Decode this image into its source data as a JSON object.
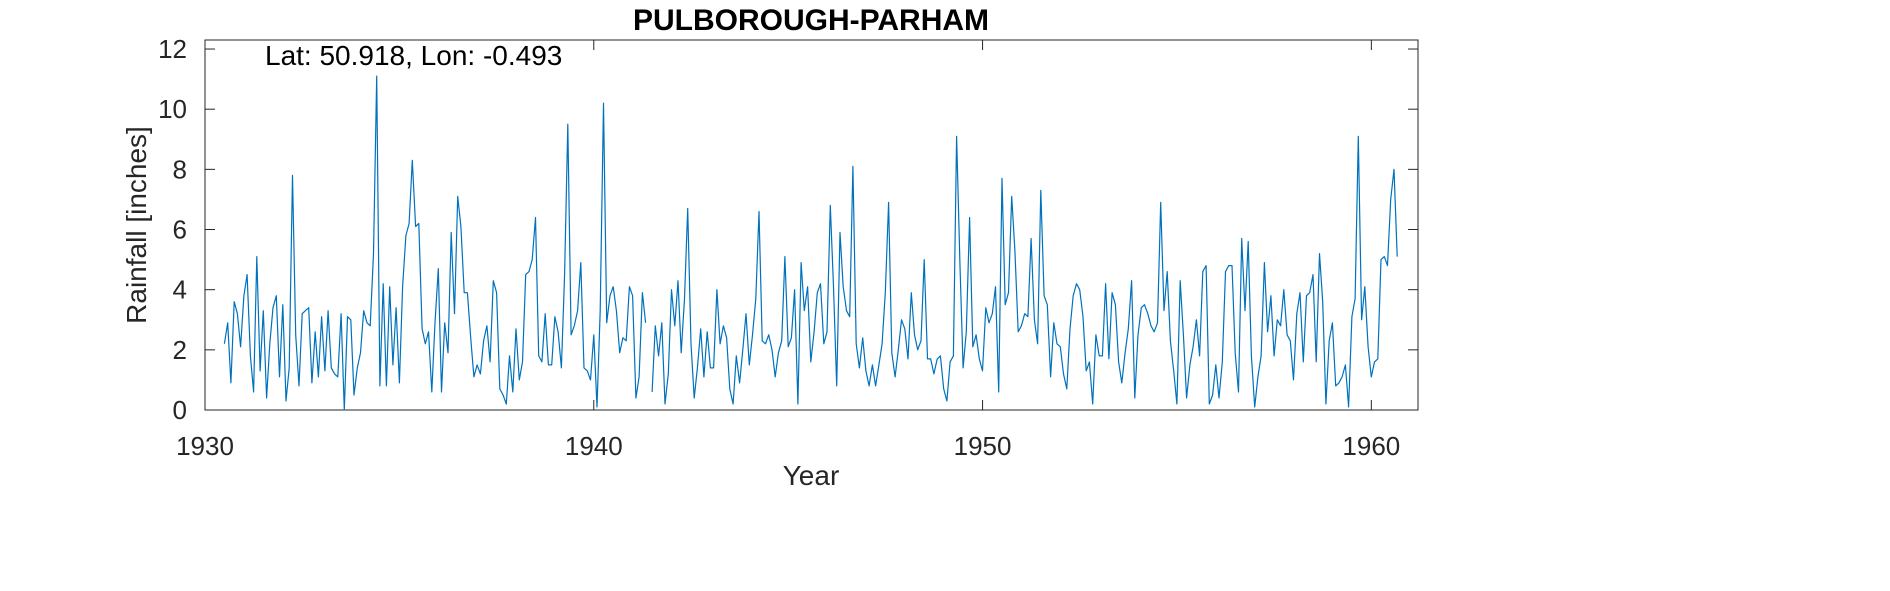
{
  "chart_data": {
    "type": "line",
    "title": "PULBOROUGH-PARHAM",
    "xlabel": "Year",
    "ylabel": "Rainfall [inches]",
    "annotation": "Lat: 50.918, Lon: -0.493",
    "xlim": [
      1930,
      1961.2
    ],
    "ylim": [
      0,
      12.3
    ],
    "xticks": [
      1930,
      1940,
      1950,
      1960
    ],
    "yticks": [
      0,
      2,
      4,
      6,
      8,
      10,
      12
    ],
    "grid": false,
    "legend": "none",
    "line_color": "#0072BD",
    "series": [
      {
        "x_start": 1930.5,
        "x_step": 0.08333,
        "values": [
          2.2,
          2.9,
          0.9,
          3.6,
          3.2,
          2.1,
          3.8,
          4.5,
          1.8,
          0.6,
          5.1,
          1.3,
          3.3,
          0.4,
          2.2,
          3.4,
          3.8,
          1.1,
          3.5,
          0.3,
          1.4,
          7.8,
          2.5,
          0.8,
          3.2,
          3.3,
          3.4,
          0.9,
          2.6,
          1.1,
          3.1,
          1.3,
          3.3,
          1.4,
          1.2,
          1.1,
          3.2,
          0.0,
          3.1,
          3.0,
          0.5,
          1.4,
          1.9,
          3.3,
          2.9,
          2.8,
          5.2,
          11.1,
          0.8,
          4.2,
          0.8,
          4.1,
          1.5,
          3.4,
          0.9,
          4.1,
          5.8,
          6.2,
          8.3,
          6.1,
          6.2,
          2.7,
          2.2,
          2.6,
          0.6,
          2.9,
          4.7,
          0.6,
          2.9,
          1.9,
          5.9,
          3.2,
          7.1,
          6.1,
          3.9,
          3.9,
          2.4,
          1.1,
          1.5,
          1.2,
          2.3,
          2.8,
          1.6,
          4.3,
          3.9,
          0.7,
          0.5,
          0.2,
          1.8,
          0.6,
          2.7,
          1.0,
          1.6,
          4.5,
          4.6,
          5.0,
          6.4,
          1.8,
          1.6,
          3.2,
          1.5,
          1.5,
          3.1,
          2.6,
          1.4,
          4.5,
          9.5,
          2.5,
          2.8,
          3.3,
          4.9,
          1.4,
          1.3,
          1.0,
          2.5,
          0.1,
          3.3,
          10.2,
          2.9,
          3.8,
          4.1,
          3.3,
          1.9,
          2.4,
          2.3,
          4.1,
          3.8,
          0.4,
          1.1,
          3.9,
          2.9,
          null,
          0.6,
          2.8,
          1.8,
          2.9,
          0.2,
          1.2,
          4.0,
          2.8,
          4.3,
          1.9,
          3.7,
          6.7,
          2.2,
          0.4,
          1.4,
          2.7,
          1.1,
          2.6,
          1.4,
          1.4,
          4.0,
          2.2,
          2.8,
          2.4,
          0.7,
          0.2,
          1.8,
          0.9,
          2.0,
          3.2,
          1.5,
          2.5,
          3.7,
          6.6,
          2.3,
          2.2,
          2.5,
          2.0,
          1.1,
          1.9,
          2.3,
          5.1,
          2.1,
          2.4,
          4.0,
          0.2,
          4.9,
          3.3,
          4.1,
          1.6,
          2.6,
          3.9,
          4.2,
          2.2,
          2.6,
          6.8,
          4.1,
          0.8,
          5.9,
          4.1,
          3.3,
          3.1,
          8.1,
          2.2,
          1.4,
          2.4,
          1.3,
          0.8,
          1.5,
          0.8,
          1.5,
          2.2,
          3.9,
          6.9,
          1.9,
          1.1,
          2.0,
          3.0,
          2.7,
          1.7,
          3.9,
          2.5,
          2.0,
          2.3,
          5.0,
          1.7,
          1.7,
          1.2,
          1.7,
          1.8,
          0.7,
          0.3,
          1.6,
          1.8,
          9.1,
          4.9,
          1.4,
          2.6,
          6.4,
          2.1,
          2.5,
          1.7,
          1.3,
          3.4,
          2.9,
          3.2,
          4.1,
          0.6,
          7.7,
          3.5,
          3.9,
          7.1,
          5.3,
          2.6,
          2.8,
          3.2,
          3.1,
          5.7,
          3.0,
          2.2,
          7.3,
          3.8,
          3.5,
          1.1,
          2.9,
          2.2,
          2.1,
          1.2,
          0.7,
          2.7,
          3.8,
          4.2,
          4.0,
          3.1,
          1.3,
          1.6,
          0.2,
          2.5,
          1.8,
          1.8,
          4.2,
          1.7,
          3.9,
          3.5,
          1.6,
          0.9,
          1.9,
          2.7,
          4.3,
          0.4,
          2.5,
          3.4,
          3.5,
          3.2,
          2.8,
          2.6,
          2.9,
          6.9,
          3.3,
          4.6,
          2.3,
          1.3,
          0.2,
          4.3,
          2.5,
          0.4,
          1.5,
          2.1,
          3.0,
          1.8,
          4.6,
          4.8,
          0.2,
          0.5,
          1.5,
          0.4,
          1.6,
          4.6,
          4.8,
          4.8,
          1.9,
          0.6,
          5.7,
          3.3,
          5.6,
          1.8,
          0.1,
          1.1,
          1.8,
          4.9,
          2.6,
          3.8,
          1.8,
          3.0,
          2.8,
          4.0,
          2.5,
          2.3,
          1.0,
          3.2,
          3.9,
          1.6,
          3.8,
          3.9,
          4.5,
          1.6,
          5.2,
          3.6,
          0.2,
          2.3,
          2.9,
          0.8,
          0.9,
          1.1,
          1.5,
          0.1,
          3.1,
          3.7,
          9.1,
          3.0,
          4.1,
          2.1,
          1.1,
          1.6,
          1.7,
          5.0,
          5.1,
          4.8,
          7.0,
          8.0,
          5.1
        ]
      }
    ]
  }
}
